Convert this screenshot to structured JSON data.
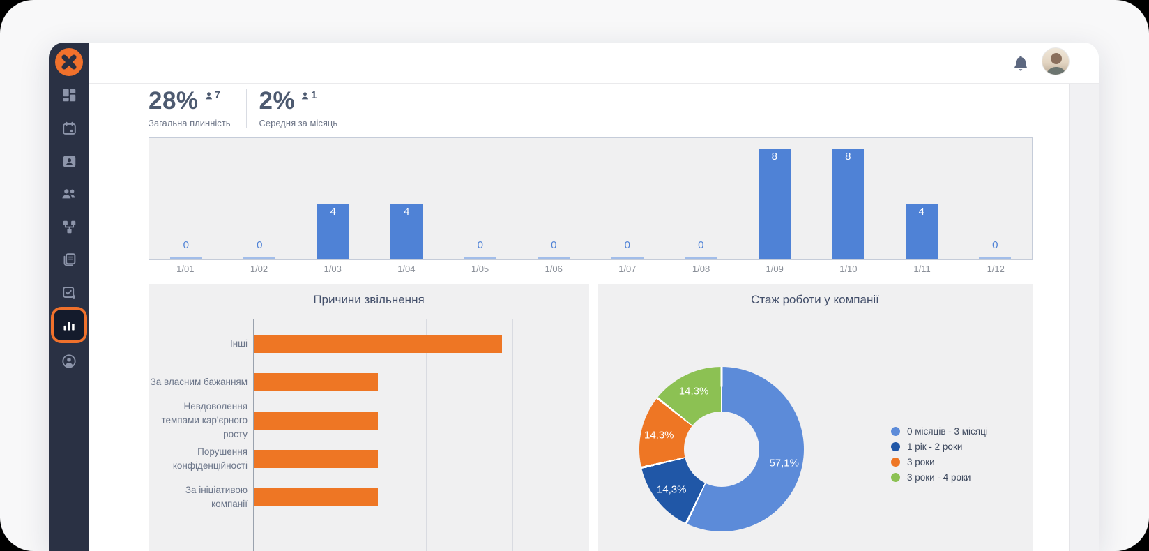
{
  "header": {
    "notifications_icon": "bell-icon",
    "avatar": "user-photo-avatar"
  },
  "sidebar": {
    "logo_icon": "x-pinwheel-logo",
    "items": [
      {
        "icon": "dashboard-icon",
        "active": false
      },
      {
        "icon": "calendar-icon",
        "active": false
      },
      {
        "icon": "contact-card-icon",
        "active": false
      },
      {
        "icon": "team-icon",
        "active": false
      },
      {
        "icon": "org-structure-icon",
        "active": false
      },
      {
        "icon": "documents-icon",
        "active": false
      },
      {
        "icon": "tasks-icon",
        "active": false
      },
      {
        "icon": "analytics-icon",
        "active": true
      },
      {
        "icon": "profile-icon",
        "active": false
      }
    ]
  },
  "stats": [
    {
      "value": "28%",
      "count": "7",
      "label": "Загальна плинність"
    },
    {
      "value": "2%",
      "count": "1",
      "label": "Середня за місяць"
    }
  ],
  "chart_data": [
    {
      "type": "bar",
      "title": "",
      "categories": [
        "1/01",
        "1/02",
        "1/03",
        "1/04",
        "1/05",
        "1/06",
        "1/07",
        "1/08",
        "1/09",
        "1/10",
        "1/11",
        "1/12"
      ],
      "values": [
        0,
        0,
        4,
        4,
        0,
        0,
        0,
        0,
        8,
        8,
        4,
        0
      ],
      "ylim": [
        0,
        8.8
      ],
      "grid": false,
      "bar_color": "#4f82d6",
      "zero_bar_color": "#a2bde9",
      "value_label_inside_color": "#ffffff",
      "zero_label_color": "#4f82d6"
    },
    {
      "type": "bar",
      "orientation": "horizontal",
      "title": "Причини звільнення",
      "categories": [
        "Інші",
        "За власним бажанням",
        "Невдоволення темпами кар'єрного росту",
        "Порушення конфіденційності",
        "За ініціативою компанії"
      ],
      "values": [
        28.6,
        14.3,
        14.3,
        14.3,
        14.3
      ],
      "xlim": [
        0,
        38
      ],
      "gridline_step": 10,
      "grid": true,
      "bar_color": "#ee7624"
    },
    {
      "type": "pie",
      "donut": true,
      "title": "Стаж роботи у компанії",
      "labels": [
        "0 місяців - 3 місяці",
        "1 рік - 2 роки",
        "3 роки",
        "3 роки - 4 роки"
      ],
      "values": [
        57.1,
        14.3,
        14.3,
        14.3
      ],
      "slice_labels": [
        "57,1%",
        "14,3%",
        "14,3%",
        "14,3%"
      ],
      "colors": [
        "#5c8bd9",
        "#2057a7",
        "#ee7624",
        "#8cc153"
      ],
      "legend_position": "right"
    }
  ],
  "colors": {
    "accent_orange": "#f0712c",
    "sidebar_bg": "#2a3144",
    "panel_bg": "#f0f0f1",
    "bar_blue": "#4f82d6",
    "bar_orange": "#ee7624",
    "title_text": "#44506b"
  }
}
